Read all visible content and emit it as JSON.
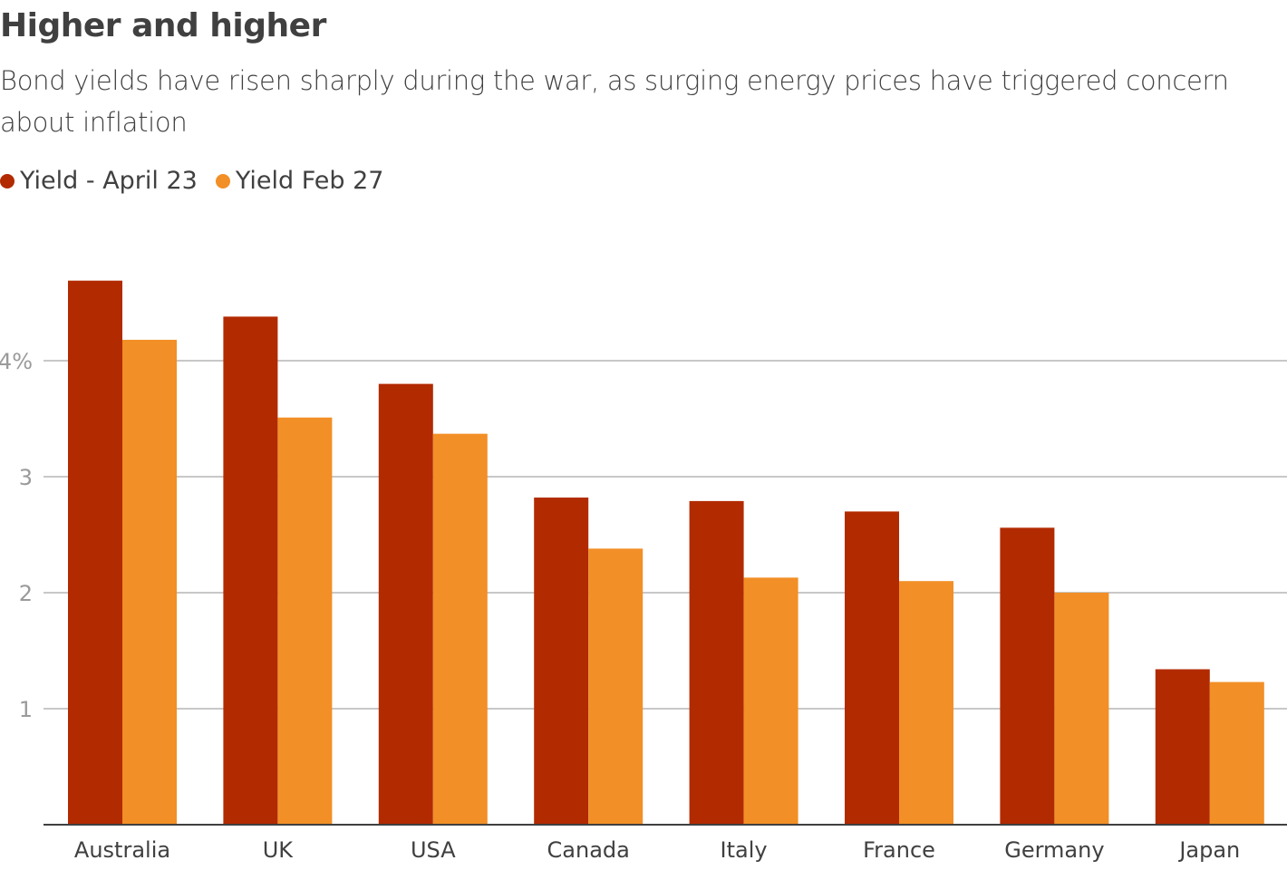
{
  "chart_data": {
    "type": "bar",
    "title": "Higher and higher",
    "subtitle": "Bond yields have risen sharply during the war, as surging energy prices have triggered concern about inflation",
    "xlabel": "",
    "ylabel": "",
    "categories": [
      "Australia",
      "UK",
      "USA",
      "Canada",
      "Italy",
      "France",
      "Germany",
      "Japan"
    ],
    "series": [
      {
        "name": "Yield - April 23",
        "color": "#b22a00",
        "values": [
          4.69,
          4.38,
          3.8,
          2.82,
          2.79,
          2.7,
          2.56,
          1.34
        ]
      },
      {
        "name": "Yield Feb 27",
        "color": "#f28f26",
        "values": [
          4.18,
          3.51,
          3.37,
          2.38,
          2.13,
          2.1,
          2.0,
          1.23
        ]
      }
    ],
    "ylim": [
      0,
      5
    ],
    "yticks": [
      {
        "value": 1,
        "label": "1"
      },
      {
        "value": 2,
        "label": "2"
      },
      {
        "value": 3,
        "label": "3"
      },
      {
        "value": 4,
        "label": "4%"
      }
    ],
    "grid": true,
    "legend": "top-left"
  }
}
